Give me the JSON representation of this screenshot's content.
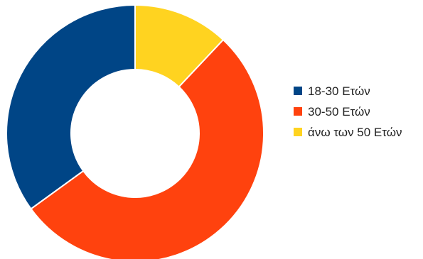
{
  "chart_data": {
    "type": "pie",
    "variant": "donut",
    "title": "",
    "categories": [
      "18-30 Ετών",
      "30-50 Ετών",
      "άνω των 50 Ετών"
    ],
    "values": [
      35,
      53,
      12
    ],
    "colors": [
      "#004586",
      "#ff420e",
      "#ffd320"
    ],
    "legend": "right",
    "start_angle_deg": 0,
    "direction": "counterclockwise"
  }
}
